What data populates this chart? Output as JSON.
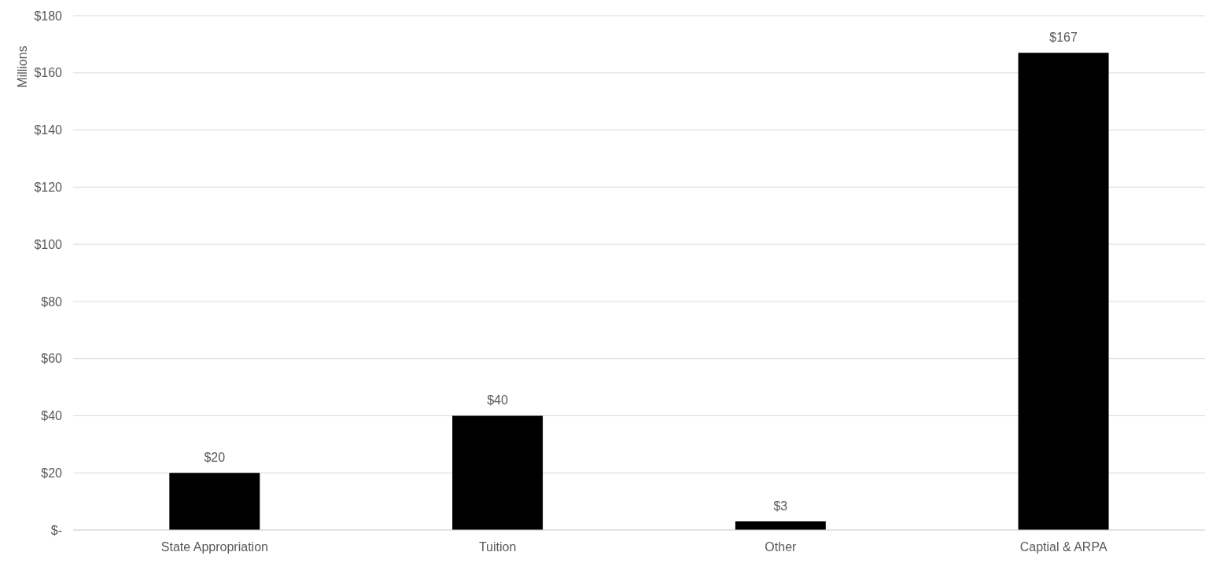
{
  "chart_data": {
    "type": "bar",
    "ylabel": "Millions",
    "categories": [
      "State Appropriation",
      "Tuition",
      "Other",
      "Captial & ARPA"
    ],
    "values": [
      20,
      40,
      3,
      167
    ],
    "color": "#000000",
    "value_labels": [
      "$20",
      "$40",
      "$3",
      "$167"
    ],
    "ylim": [
      0,
      180
    ],
    "yticks": [
      {
        "value": 0,
        "label": "$-"
      },
      {
        "value": 20,
        "label": "$20"
      },
      {
        "value": 40,
        "label": "$40"
      },
      {
        "value": 60,
        "label": "$60"
      },
      {
        "value": 80,
        "label": "$80"
      },
      {
        "value": 100,
        "label": "$100"
      },
      {
        "value": 120,
        "label": "$120"
      },
      {
        "value": 140,
        "label": "$140"
      },
      {
        "value": 160,
        "label": "$160"
      },
      {
        "value": 180,
        "label": "$180"
      }
    ],
    "grid": "y"
  }
}
